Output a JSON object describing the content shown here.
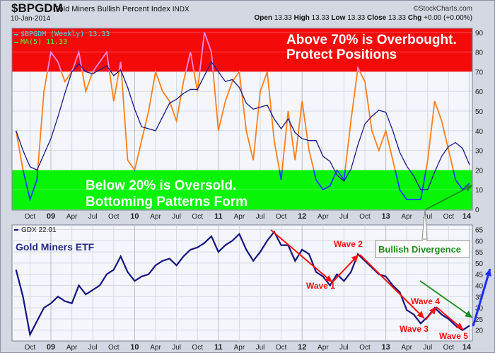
{
  "header": {
    "symbol": "$BPGDM",
    "name": "Gold Miners Bullish Percent Index",
    "exchange": "INDX",
    "date": "10-Jan-2014",
    "watermark": "©StockCharts.com",
    "ohlc": {
      "open_label": "Open",
      "open": "13.33",
      "high_label": "High",
      "high": "13.33",
      "low_label": "Low",
      "low": "13.33",
      "close_label": "Close",
      "close": "13.33",
      "chg_label": "Chg",
      "chg": "+0.00 (+0.00%)"
    }
  },
  "colors": {
    "overbought_zone": "#f50a0a",
    "oversold_zone": "#08f508",
    "bpgdm_line": "#ff7f1a",
    "bpgdm_overbought": "#ff88dd",
    "bpgdm_oversold": "#1a3cff",
    "ma_line": "#1a1a8c",
    "gdx_line": "#141480",
    "wave_arrow": "#ff1010",
    "divergence_arrow": "#1a8c1a",
    "breakout_arrow": "#1a2cff"
  },
  "chart_data": [
    {
      "type": "line",
      "title": "$BPGDM Gold Miners Bullish Percent Index INDX",
      "legend": [
        "$BPGDM (Weekly) 13.33",
        "MA(5) 11.33"
      ],
      "legend_placement": "top-left",
      "ylim": [
        0,
        95
      ],
      "yticks": [
        0,
        10,
        20,
        30,
        40,
        50,
        60,
        70,
        80,
        90
      ],
      "grid": true,
      "zones": [
        {
          "from": 70,
          "to": 95,
          "color": "red"
        },
        {
          "from": 0,
          "to": 20,
          "color": "green"
        }
      ],
      "annotations": [
        "Above 70% is Overbought.",
        "Protect Positions",
        "Below 20% is Oversold.",
        "Bottoming Patterns Form"
      ],
      "xticks": [
        "Oct",
        "09",
        "Apr",
        "Jul",
        "Oct",
        "10",
        "Apr",
        "Jul",
        "Oct",
        "11",
        "Apr",
        "Jul",
        "Oct",
        "12",
        "Apr",
        "Jul",
        "Oct",
        "13",
        "Apr",
        "Jul",
        "Oct",
        "14"
      ],
      "x_start": "2008-08",
      "x_end": "2014-01",
      "ma_period": 5,
      "series": [
        {
          "name": "$BPGDM",
          "values": [
            40,
            20,
            5,
            15,
            60,
            80,
            75,
            65,
            70,
            80,
            60,
            70,
            75,
            80,
            55,
            75,
            25,
            20,
            35,
            50,
            70,
            60,
            55,
            45,
            65,
            80,
            60,
            90,
            80,
            40,
            55,
            65,
            70,
            40,
            25,
            60,
            70,
            35,
            15,
            50,
            25,
            55,
            30,
            15,
            10,
            12,
            20,
            15,
            45,
            72,
            65,
            40,
            30,
            40,
            25,
            10,
            5,
            5,
            5,
            25,
            55,
            45,
            30,
            15,
            10,
            13.33
          ]
        }
      ]
    },
    {
      "type": "line",
      "legend": [
        "GDX 22.01"
      ],
      "legend_placement": "top-left",
      "label": "Gold Miners ETF",
      "ylim": [
        16,
        66
      ],
      "yticks": [
        20,
        25,
        30,
        35,
        40,
        45,
        50,
        55,
        60,
        65
      ],
      "grid": true,
      "xticks": [
        "Oct",
        "09",
        "Apr",
        "Jul",
        "Oct",
        "10",
        "Apr",
        "Jul",
        "Oct",
        "11",
        "Apr",
        "Jul",
        "Oct",
        "12",
        "Apr",
        "Jul",
        "Oct",
        "13",
        "Apr",
        "Jul",
        "Oct",
        "14"
      ],
      "x_start": "2008-08",
      "x_end": "2014-01",
      "series": [
        {
          "name": "GDX",
          "values": [
            47,
            35,
            18,
            24,
            30,
            32,
            35,
            33,
            32,
            40,
            36,
            38,
            40,
            45,
            47,
            53,
            46,
            42,
            44,
            45,
            49,
            51,
            52,
            49,
            53,
            56,
            57,
            59,
            62,
            55,
            58,
            60,
            63,
            56,
            51,
            55,
            60,
            64,
            58,
            58,
            51,
            56,
            54,
            46,
            44,
            40,
            45,
            42,
            46,
            54,
            51,
            48,
            45,
            44,
            40,
            37,
            29,
            27,
            23,
            26,
            30,
            27,
            25,
            22,
            20,
            22.01
          ]
        }
      ],
      "annotations": [
        "Wave 1",
        "Wave 2",
        "Wave 3",
        "Wave 4",
        "Wave 5",
        "Bullish Divergence"
      ]
    }
  ]
}
